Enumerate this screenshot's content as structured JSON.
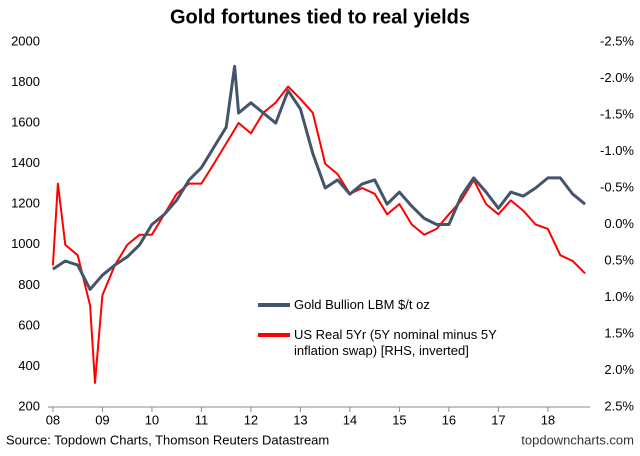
{
  "chart_data": {
    "type": "line",
    "title": "Gold fortunes tied to real yields",
    "source": "Source: Topdown Charts, Thomson Reuters Datastream",
    "credit": "topdowncharts.com",
    "xlim": [
      2007.9,
      2018.85
    ],
    "xticks": [
      {
        "value": 2008,
        "label": "08"
      },
      {
        "value": 2009,
        "label": "09"
      },
      {
        "value": 2010,
        "label": "10"
      },
      {
        "value": 2011,
        "label": "11"
      },
      {
        "value": 2012,
        "label": "12"
      },
      {
        "value": 2013,
        "label": "13"
      },
      {
        "value": 2014,
        "label": "14"
      },
      {
        "value": 2015,
        "label": "15"
      },
      {
        "value": 2016,
        "label": "16"
      },
      {
        "value": 2017,
        "label": "17"
      },
      {
        "value": 2018,
        "label": "18"
      }
    ],
    "ylim": [
      200,
      2000
    ],
    "yticks": [
      200,
      400,
      600,
      800,
      1000,
      1200,
      1400,
      1600,
      1800,
      2000
    ],
    "y2lim": [
      2.5,
      -2.5
    ],
    "y2ticks": [
      {
        "value": -2.5,
        "label": "-2.5%"
      },
      {
        "value": -2,
        "label": "-2.0%"
      },
      {
        "value": -1.5,
        "label": "-1.5%"
      },
      {
        "value": -1,
        "label": "-1.0%"
      },
      {
        "value": -0.5,
        "label": "-0.5%"
      },
      {
        "value": 0,
        "label": "0.0%"
      },
      {
        "value": 0.5,
        "label": "0.5%"
      },
      {
        "value": 1,
        "label": "1.0%"
      },
      {
        "value": 1.5,
        "label": "1.5%"
      },
      {
        "value": 2,
        "label": "2.0%"
      },
      {
        "value": 2.5,
        "label": "2.5%"
      }
    ],
    "series": [
      {
        "name": "Gold Bullion LBM $/t oz",
        "color": "#44546a",
        "x": [
          2008,
          2008.25,
          2008.5,
          2008.75,
          2009,
          2009.25,
          2009.5,
          2009.75,
          2010,
          2010.25,
          2010.5,
          2010.75,
          2011,
          2011.25,
          2011.5,
          2011.67,
          2011.75,
          2012,
          2012.25,
          2012.5,
          2012.75,
          2013,
          2013.25,
          2013.5,
          2013.75,
          2014,
          2014.25,
          2014.5,
          2014.75,
          2015,
          2015.25,
          2015.5,
          2015.75,
          2016,
          2016.25,
          2016.5,
          2016.75,
          2017,
          2017.25,
          2017.5,
          2017.75,
          2018,
          2018.25,
          2018.5,
          2018.75
        ],
        "values": [
          880,
          920,
          900,
          780,
          850,
          900,
          940,
          1000,
          1100,
          1150,
          1220,
          1320,
          1380,
          1480,
          1580,
          1880,
          1650,
          1700,
          1650,
          1600,
          1760,
          1670,
          1450,
          1280,
          1320,
          1250,
          1300,
          1320,
          1200,
          1260,
          1190,
          1130,
          1100,
          1100,
          1240,
          1330,
          1260,
          1180,
          1260,
          1240,
          1280,
          1330,
          1330,
          1250,
          1200
        ]
      },
      {
        "name": "US Real 5Yr (5Y nominal minus 5Y inflation swap) [RHS, inverted]",
        "color": "#ff0000",
        "axis": "y2",
        "x": [
          2008,
          2008.1,
          2008.25,
          2008.5,
          2008.75,
          2008.85,
          2009,
          2009.25,
          2009.5,
          2009.75,
          2010,
          2010.25,
          2010.5,
          2010.75,
          2011,
          2011.25,
          2011.5,
          2011.75,
          2012,
          2012.25,
          2012.5,
          2012.75,
          2013,
          2013.25,
          2013.5,
          2013.75,
          2014,
          2014.25,
          2014.5,
          2014.75,
          2015,
          2015.25,
          2015.5,
          2015.75,
          2016,
          2016.25,
          2016.5,
          2016.75,
          2017,
          2017.25,
          2017.5,
          2017.75,
          2018,
          2018.25,
          2018.5,
          2018.75
        ],
        "values": [
          0.56,
          -0.56,
          0.28,
          0.42,
          1.11,
          2.17,
          0.97,
          0.56,
          0.28,
          0.14,
          0.14,
          -0.14,
          -0.42,
          -0.56,
          -0.56,
          -0.83,
          -1.11,
          -1.39,
          -1.25,
          -1.53,
          -1.67,
          -1.89,
          -1.72,
          -1.53,
          -0.83,
          -0.69,
          -0.42,
          -0.5,
          -0.42,
          -0.14,
          -0.28,
          0,
          0.14,
          0.06,
          -0.14,
          -0.33,
          -0.61,
          -0.28,
          -0.14,
          -0.33,
          -0.19,
          0,
          0.06,
          0.42,
          0.5,
          0.67
        ]
      }
    ]
  }
}
